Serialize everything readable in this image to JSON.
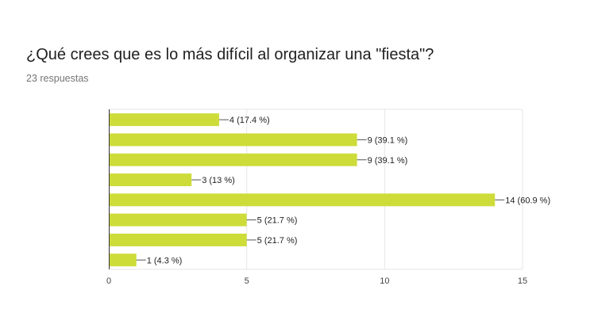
{
  "question": {
    "title": "¿Qué crees que es lo más difícil al organizar una \"fiesta\"?",
    "responses": "23 respuestas"
  },
  "chart_data": {
    "type": "bar",
    "orientation": "horizontal",
    "categories": [
      "",
      "",
      "",
      "",
      "",
      "",
      "",
      ""
    ],
    "values": [
      4,
      9,
      9,
      3,
      14,
      5,
      5,
      1
    ],
    "data_labels": [
      "4 (17.4 %)",
      "9 (39.1 %)",
      "9 (39.1 %)",
      "3 (13 %)",
      "14 (60.9 %)",
      "5 (21.7 %)",
      "5 (21.7 %)",
      "1 (4.3 %)"
    ],
    "x_ticks": [
      "0",
      "5",
      "10",
      "15"
    ],
    "xlim": [
      0,
      15
    ],
    "grid": true,
    "bar_color": "#cddc39"
  }
}
